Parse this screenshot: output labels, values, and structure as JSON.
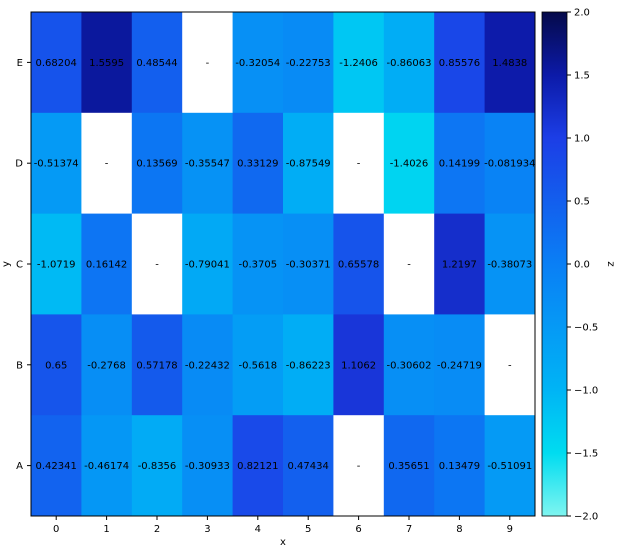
{
  "chart_data": {
    "type": "heatmap",
    "x_categories": [
      "0",
      "1",
      "2",
      "3",
      "4",
      "5",
      "6",
      "7",
      "8",
      "9"
    ],
    "y_categories": [
      "A",
      "B",
      "C",
      "D",
      "E"
    ],
    "xlabel": "x",
    "ylabel": "y",
    "colorbar_label": "z",
    "zlim": [
      -2.0,
      2.0
    ],
    "colorbar_ticks": [
      "2.0",
      "1.5",
      "1.0",
      "0.5",
      "0.0",
      "−0.5",
      "−1.0",
      "−1.5",
      "−2.0"
    ],
    "missing_label": "-",
    "colors": {
      "low": "#7ff5f0",
      "mid_low": "#00c8f0",
      "zero": "#0a7ff5",
      "mid_high": "#1830e0",
      "high": "#050a4a",
      "missing": "#ffffff"
    },
    "rows": [
      {
        "y": "E",
        "values": [
          0.68204,
          1.5595,
          0.48544,
          null,
          -0.32054,
          -0.22753,
          -1.2406,
          -0.86063,
          0.85576,
          1.4838
        ],
        "labels": [
          "0.68204",
          "1.5595",
          "0.48544",
          "-",
          "-0.32054",
          "-0.22753",
          "-1.2406",
          "-0.86063",
          "0.85576",
          "1.4838"
        ]
      },
      {
        "y": "D",
        "values": [
          -0.51374,
          null,
          0.13569,
          -0.35547,
          0.33129,
          -0.87549,
          null,
          -1.4026,
          0.14199,
          -0.081934
        ],
        "labels": [
          "-0.51374",
          "-",
          "0.13569",
          "-0.35547",
          "0.33129",
          "-0.87549",
          "-",
          "-1.4026",
          "0.14199",
          "-0.081934"
        ]
      },
      {
        "y": "C",
        "values": [
          -1.0719,
          0.16142,
          null,
          -0.79041,
          -0.3705,
          -0.30371,
          0.65578,
          null,
          1.2197,
          -0.38073
        ],
        "labels": [
          "-1.0719",
          "0.16142",
          "-",
          "-0.79041",
          "-0.3705",
          "-0.30371",
          "0.65578",
          "-",
          "1.2197",
          "-0.38073"
        ]
      },
      {
        "y": "B",
        "values": [
          0.65,
          -0.2768,
          0.57178,
          -0.22432,
          -0.5618,
          -0.86223,
          1.1062,
          -0.30602,
          -0.24719,
          null
        ],
        "labels": [
          "0.65",
          "-0.2768",
          "0.57178",
          "-0.22432",
          "-0.5618",
          "-0.86223",
          "1.1062",
          "-0.30602",
          "-0.24719",
          "-"
        ]
      },
      {
        "y": "A",
        "values": [
          0.42341,
          -0.46174,
          -0.8356,
          -0.30933,
          0.82121,
          0.47434,
          null,
          0.35651,
          0.13479,
          -0.51091
        ],
        "labels": [
          "0.42341",
          "-0.46174",
          "-0.8356",
          "-0.30933",
          "0.82121",
          "0.47434",
          "-",
          "0.35651",
          "0.13479",
          "-0.51091"
        ]
      }
    ]
  }
}
